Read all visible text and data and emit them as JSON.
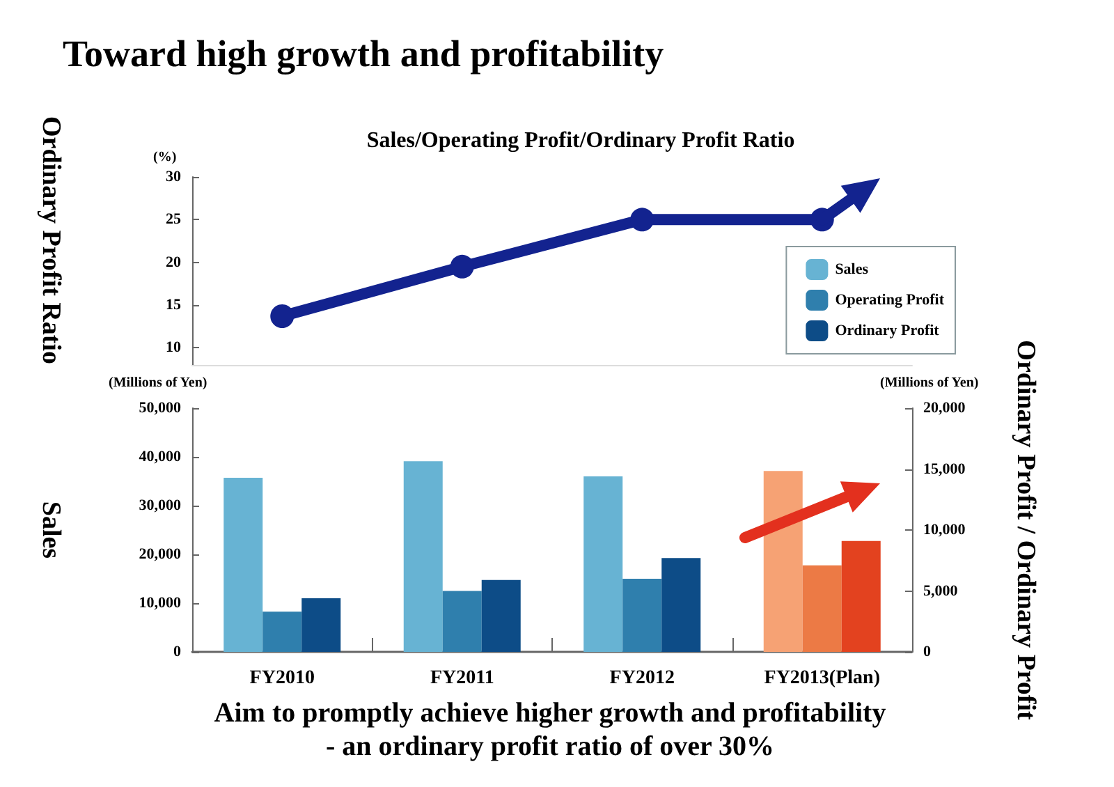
{
  "chart_data": [
    {
      "type": "line",
      "title": "Toward high growth and profitability",
      "subtitle": "Sales/Operating Profit/Ordinary Profit Ratio",
      "ylabel": "Ordinary Profit Ratio",
      "annotations": [
        "(%)"
      ],
      "categories": [
        null,
        null,
        null,
        null
      ],
      "tick_labels": "y",
      "ylim": [
        8,
        30
      ],
      "yticks": [
        10,
        15,
        20,
        25,
        30
      ],
      "grid": false,
      "legend": false,
      "marker": "circle",
      "line_style": "solid",
      "series": [
        {
          "color": "#13238f",
          "values": [
            13.7,
            19.5,
            25,
            25
          ]
        }
      ]
    },
    {
      "type": "bar",
      "ylabel": "Sales",
      "y2label": "Ordinary Profit / Ordinary Profit",
      "annotations": [
        "(Millions of Yen)",
        "(Millions of Yen)",
        "Aim to promptly achieve higher growth and profitability",
        "- an ordinary profit ratio of over 30%"
      ],
      "categories": [
        "FY2010",
        "FY2011",
        "FY2012",
        "FY2013(Plan)"
      ],
      "ylim": [
        0,
        50000
      ],
      "yticks": [
        {
          "value": 0,
          "label": "0"
        },
        {
          "value": 10000,
          "label": "10,000"
        },
        {
          "value": 20000,
          "label": "20,000"
        },
        {
          "value": 30000,
          "label": "30,000"
        },
        {
          "value": 40000,
          "label": "40,000"
        },
        {
          "value": 50000,
          "label": "50,000"
        }
      ],
      "y2lim": [
        0,
        20000
      ],
      "y2ticks": [
        {
          "value": 0,
          "label": "0"
        },
        {
          "value": 5000,
          "label": "5,000"
        },
        {
          "value": 10000,
          "label": "10,000"
        },
        {
          "value": 15000,
          "label": "15,000"
        },
        {
          "value": 20000,
          "label": "20,000"
        }
      ],
      "grid": false,
      "legend": "top right",
      "series": [
        {
          "name": "Sales",
          "color": "#67b3d3",
          "colors": [
            "#67b3d3",
            "#67b3d3",
            "#67b3d3",
            "#f6a274"
          ],
          "values": [
            35700,
            39100,
            36000,
            37100
          ]
        },
        {
          "name": "Operating Profit",
          "color": "#2f7fad",
          "axis": "y2",
          "colors": [
            "#2f7fad",
            "#2f7fad",
            "#2f7fad",
            "#ec7a45"
          ],
          "values": [
            3300,
            5000,
            6000,
            7100
          ]
        },
        {
          "name": "Ordinary Profit",
          "color": "#0d4c87",
          "axis": "y2",
          "colors": [
            "#0d4c87",
            "#0d4c87",
            "#0d4c87",
            "#e3421f"
          ],
          "values": [
            4400,
            5900,
            7700,
            9100
          ]
        }
      ]
    }
  ]
}
